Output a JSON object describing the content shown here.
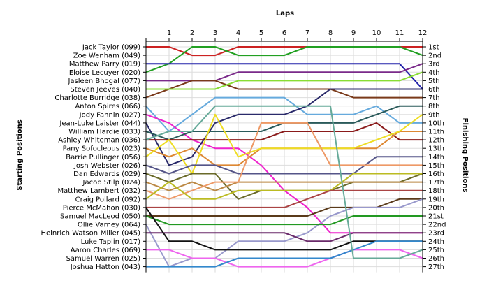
{
  "chart_data": {
    "type": "line",
    "title": "Laps",
    "ylabel_left": "Starting Positions",
    "ylabel_right": "Finishing Positions",
    "x": [
      0,
      1,
      2,
      3,
      4,
      5,
      6,
      7,
      8,
      9,
      10,
      11,
      12
    ],
    "x_tick_labels": [
      "1",
      "2",
      "3",
      "4",
      "5",
      "6",
      "7",
      "8",
      "9",
      "10",
      "11",
      "12"
    ],
    "y_range": [
      1,
      27
    ],
    "grid": true,
    "start_labels": [
      "Jack Taylor (099)",
      "Zoe Wenham (049)",
      "Matthew Parry (019)",
      "Eloise Lecuyer (020)",
      "Jasleen Bhogal (077)",
      "Steven Jeeves (040)",
      "Charlotte Burridge (038)",
      "Anton Spires (066)",
      "Jody Fannin (027)",
      "Jean-Luke Laister (044)",
      "William Hardie (033)",
      "Ashley Whiteman (036)",
      "Pany Sofocleous (023)",
      "Barrie Pullinger (056)",
      "Josh Webster (026)",
      "Dan Edwards (029)",
      "Jacob Stilp (024)",
      "Matthew Lambert (032)",
      "Craig Pollard (092)",
      "Pierce McMahon (030)",
      "Samuel MacLeod (050)",
      "Ollie Varney (064)",
      "Heinrich Watson-Miller (045)",
      "Luke Taplin (017)",
      "Aaron Charles (069)",
      "Samuel Warren (025)",
      "Joshua Hatton (043)"
    ],
    "finish_labels": [
      "1st",
      "2nd",
      "3rd",
      "4th",
      "5th",
      "6th",
      "7th",
      "8th",
      "9th",
      "10th",
      "11th",
      "12th",
      "13th",
      "14th",
      "15th",
      "16th",
      "17th",
      "18th",
      "19th",
      "20th",
      "21st",
      "22nd",
      "23rd",
      "24th",
      "25th",
      "26th",
      "27th"
    ],
    "series": [
      {
        "color": "#cc2222",
        "positions": [
          1,
          1,
          2,
          2,
          1,
          1,
          1,
          1,
          1,
          1,
          1,
          1,
          1
        ]
      },
      {
        "color": "#22a022",
        "positions": [
          4,
          3,
          1,
          1,
          2,
          2,
          2,
          1,
          1,
          1,
          1,
          1,
          2
        ]
      },
      {
        "color": "#2222aa",
        "positions": [
          3,
          3,
          3,
          3,
          3,
          3,
          3,
          3,
          3,
          3,
          3,
          3,
          6
        ]
      },
      {
        "color": "#7a2a8a",
        "positions": [
          5,
          5,
          5,
          5,
          4,
          4,
          4,
          4,
          4,
          4,
          4,
          4,
          3
        ]
      },
      {
        "color": "#7a3a1a",
        "positions": [
          7,
          6,
          5,
          5,
          6,
          6,
          6,
          6,
          6,
          7,
          7,
          7,
          7
        ]
      },
      {
        "color": "#88dd33",
        "positions": [
          6,
          6,
          6,
          6,
          5,
          5,
          5,
          5,
          5,
          5,
          5,
          5,
          4
        ]
      },
      {
        "color": "#66aadd",
        "positions": [
          8,
          11,
          9,
          7,
          7,
          7,
          7,
          9,
          9,
          9,
          8,
          10,
          10
        ]
      },
      {
        "color": "#ee22cc",
        "positions": [
          9,
          10,
          12,
          13,
          13,
          15,
          18,
          20,
          23,
          23,
          23,
          23,
          23
        ]
      },
      {
        "color": "#2a2a6a",
        "positions": [
          10,
          15,
          14,
          10,
          9,
          9,
          9,
          8,
          6,
          6,
          6,
          6,
          6
        ]
      },
      {
        "color": "#2a5a5a",
        "positions": [
          11,
          12,
          11,
          11,
          11,
          11,
          10,
          10,
          10,
          10,
          9,
          8,
          8
        ]
      },
      {
        "color": "#8a1a1a",
        "positions": [
          12,
          12,
          12,
          12,
          12,
          12,
          11,
          11,
          11,
          11,
          10,
          12,
          12
        ]
      },
      {
        "color": "#dd8833",
        "positions": [
          13,
          14,
          13,
          15,
          15,
          13,
          13,
          13,
          13,
          13,
          13,
          11,
          11
        ]
      },
      {
        "color": "#eedd22",
        "positions": [
          14,
          12,
          16,
          9,
          14,
          13,
          13,
          13,
          13,
          13,
          12,
          11,
          9
        ]
      },
      {
        "color": "#555588",
        "positions": [
          15,
          16,
          15,
          15,
          16,
          16,
          16,
          16,
          16,
          16,
          14,
          14,
          14
        ]
      },
      {
        "color": "#6a6a2a",
        "positions": [
          16,
          17,
          16,
          16,
          19,
          18,
          18,
          18,
          18,
          17,
          17,
          17,
          16
        ]
      },
      {
        "color": "#bb8844",
        "positions": [
          17,
          18,
          17,
          18,
          17,
          17,
          17,
          17,
          17,
          17,
          17,
          17,
          17
        ]
      },
      {
        "color": "#ee9966",
        "positions": [
          18,
          19,
          18,
          17,
          17,
          10,
          10,
          10,
          15,
          15,
          15,
          15,
          15
        ]
      },
      {
        "color": "#bbbb22",
        "positions": [
          19,
          17,
          19,
          19,
          18,
          18,
          18,
          18,
          18,
          16,
          16,
          16,
          16
        ]
      },
      {
        "color": "#aa4444",
        "positions": [
          20,
          20,
          20,
          20,
          20,
          20,
          20,
          19,
          18,
          18,
          18,
          18,
          18
        ]
      },
      {
        "color": "#5a3a1a",
        "positions": [
          21,
          21,
          21,
          21,
          21,
          21,
          21,
          21,
          20,
          20,
          20,
          19,
          19
        ]
      },
      {
        "color": "#9999cc",
        "positions": [
          22,
          27,
          26,
          26,
          24,
          24,
          24,
          23,
          21,
          20,
          20,
          20,
          19
        ]
      },
      {
        "color": "#229922",
        "positions": [
          21,
          22,
          22,
          22,
          22,
          22,
          22,
          22,
          22,
          21,
          21,
          21,
          21
        ]
      },
      {
        "color": "#6a2a6a",
        "positions": [
          23,
          23,
          23,
          23,
          23,
          23,
          23,
          24,
          24,
          23,
          23,
          23,
          23
        ]
      },
      {
        "color": "#111111",
        "positions": [
          20,
          24,
          24,
          25,
          25,
          25,
          25,
          25,
          25,
          24,
          24,
          24,
          24
        ]
      },
      {
        "color": "#ee66ee",
        "positions": [
          25,
          25,
          26,
          26,
          27,
          27,
          27,
          27,
          26,
          25,
          25,
          25,
          26
        ]
      },
      {
        "color": "#3388cc",
        "positions": [
          27,
          27,
          27,
          27,
          26,
          26,
          26,
          26,
          26,
          25,
          24,
          24,
          24
        ]
      },
      {
        "color": "#66aa99",
        "positions": [
          12,
          11,
          11,
          8,
          8,
          8,
          8,
          8,
          8,
          26,
          26,
          26,
          25
        ]
      }
    ]
  }
}
